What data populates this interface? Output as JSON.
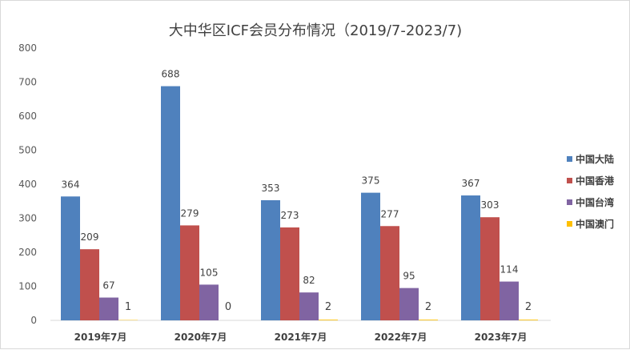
{
  "chart_data": {
    "type": "bar",
    "title": "大中华区ICF会员分布情况（2019/7-2023/7)",
    "categories": [
      "2019年7月",
      "2020年7月",
      "2021年7月",
      "2022年7月",
      "2023年7月"
    ],
    "series": [
      {
        "name": "中国大陆",
        "color": "#4f81bd",
        "values": [
          364,
          688,
          353,
          375,
          367
        ]
      },
      {
        "name": "中国香港",
        "color": "#c0504d",
        "values": [
          209,
          279,
          273,
          277,
          303
        ]
      },
      {
        "name": "中国台湾",
        "color": "#8064a2",
        "values": [
          67,
          105,
          82,
          95,
          114
        ]
      },
      {
        "name": "中国澳门",
        "color": "#ffc000",
        "values": [
          1,
          0,
          2,
          2,
          2
        ]
      }
    ],
    "ylim": [
      0,
      800
    ],
    "yticks": [
      0,
      100,
      200,
      300,
      400,
      500,
      600,
      700,
      800
    ],
    "grid": false,
    "legend": "right"
  }
}
